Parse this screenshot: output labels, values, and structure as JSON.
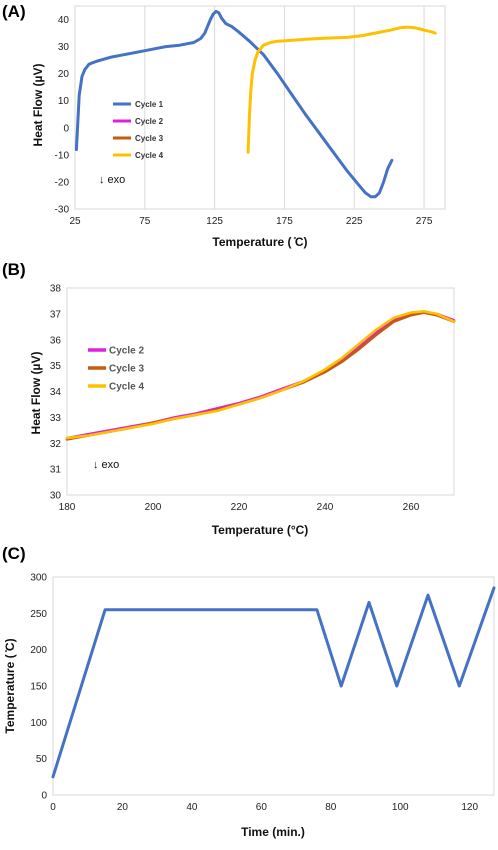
{
  "chart_data": [
    {
      "panel": "(A)",
      "type": "line",
      "xlabel": "Temperature ( ̊C)",
      "ylabel": "Heat Flow (µV)",
      "xlim": [
        25,
        290
      ],
      "ylim": [
        -30,
        45
      ],
      "xticks": [
        25,
        75,
        125,
        175,
        225,
        275
      ],
      "yticks": [
        -30,
        -20,
        -10,
        0,
        10,
        20,
        30,
        40
      ],
      "grid": "vertical",
      "legend_position": "left",
      "annotation": "↓ exo",
      "series": [
        {
          "name": "Cycle 1",
          "color": "#4472C4",
          "x": [
            26,
            27,
            28,
            30,
            32,
            35,
            40,
            50,
            60,
            75,
            90,
            100,
            110,
            115,
            118,
            120,
            122,
            124,
            126,
            128,
            130,
            133,
            137,
            142,
            150,
            160,
            170,
            180,
            190,
            200,
            210,
            220,
            228,
            233,
            237,
            240,
            243,
            246,
            249,
            252
          ],
          "y": [
            -8,
            2,
            12,
            19,
            21.5,
            23.5,
            24.5,
            26,
            27,
            28.5,
            30,
            30.5,
            31.5,
            33,
            35,
            37.5,
            40,
            42,
            43,
            42.5,
            40.5,
            38.5,
            37.5,
            35.5,
            32,
            27,
            20,
            12.5,
            5,
            -2,
            -9,
            -16,
            -21,
            -24,
            -25.5,
            -25.5,
            -24,
            -20,
            -15,
            -12
          ]
        },
        {
          "name": "Cycle 2",
          "color": "#E020E0",
          "x": [],
          "y": []
        },
        {
          "name": "Cycle 3",
          "color": "#C55A11",
          "x": [],
          "y": []
        },
        {
          "name": "Cycle 4",
          "color": "#FFC000",
          "x": [
            149,
            149.5,
            150,
            151,
            152,
            154,
            156,
            160,
            165,
            170,
            180,
            190,
            200,
            210,
            220,
            230,
            240,
            250,
            258,
            263,
            268,
            272,
            276,
            280,
            283
          ],
          "y": [
            -9,
            -2,
            5,
            14,
            20,
            25,
            28,
            30.5,
            31.5,
            32,
            32.3,
            32.7,
            33,
            33.2,
            33.4,
            34,
            35,
            36,
            37,
            37.2,
            37,
            36.5,
            36,
            35.5,
            35
          ]
        }
      ]
    },
    {
      "panel": "(B)",
      "type": "line",
      "xlabel": "Temperature (°C)",
      "ylabel": "Heat Flow (µV)",
      "xlim": [
        180,
        270
      ],
      "ylim": [
        30,
        38
      ],
      "xticks": [
        180,
        200,
        220,
        240,
        260
      ],
      "yticks": [
        30,
        31,
        32,
        33,
        34,
        35,
        36,
        37,
        38
      ],
      "grid": "none",
      "legend_position": "left",
      "annotation": "↓ exo",
      "series": [
        {
          "name": "Cycle 2",
          "color": "#E020E0",
          "x": [
            180,
            185,
            190,
            195,
            200,
            205,
            210,
            215,
            220,
            225,
            230,
            235,
            240,
            244,
            248,
            252,
            256,
            260,
            263,
            266,
            270
          ],
          "y": [
            32.2,
            32.35,
            32.5,
            32.65,
            32.8,
            33.0,
            33.15,
            33.35,
            33.55,
            33.8,
            34.1,
            34.4,
            34.8,
            35.2,
            35.75,
            36.3,
            36.75,
            37.0,
            37.05,
            37.0,
            36.75
          ]
        },
        {
          "name": "Cycle 3",
          "color": "#C55A11",
          "x": [
            180,
            185,
            190,
            195,
            200,
            205,
            210,
            215,
            220,
            225,
            230,
            235,
            240,
            244,
            248,
            252,
            256,
            260,
            263,
            266,
            270
          ],
          "y": [
            32.15,
            32.3,
            32.45,
            32.6,
            32.8,
            32.95,
            33.1,
            33.3,
            33.5,
            33.75,
            34.05,
            34.35,
            34.75,
            35.15,
            35.65,
            36.2,
            36.7,
            36.95,
            37.05,
            36.95,
            36.7
          ]
        },
        {
          "name": "Cycle 4",
          "color": "#FFC000",
          "x": [
            180,
            185,
            190,
            195,
            200,
            205,
            210,
            215,
            220,
            225,
            230,
            235,
            240,
            244,
            248,
            252,
            256,
            260,
            263,
            266,
            270
          ],
          "y": [
            32.2,
            32.3,
            32.45,
            32.6,
            32.75,
            32.95,
            33.1,
            33.25,
            33.5,
            33.75,
            34.05,
            34.4,
            34.85,
            35.3,
            35.85,
            36.4,
            36.85,
            37.05,
            37.1,
            37.0,
            36.7
          ]
        }
      ]
    },
    {
      "panel": "(C)",
      "type": "line",
      "xlabel": "Time (min.)",
      "ylabel": "Temperature ( ̊C)",
      "xlim": [
        0,
        127
      ],
      "ylim": [
        0,
        300
      ],
      "xticks": [
        0,
        20,
        40,
        60,
        80,
        100,
        120
      ],
      "yticks": [
        0,
        50,
        100,
        150,
        200,
        250,
        300
      ],
      "grid": "none",
      "series": [
        {
          "color": "#4472C4",
          "x": [
            0,
            15,
            76,
            83,
            91,
            99,
            108,
            117,
            127
          ],
          "y": [
            25,
            255,
            255,
            150,
            265,
            150,
            275,
            150,
            285
          ]
        }
      ]
    }
  ]
}
